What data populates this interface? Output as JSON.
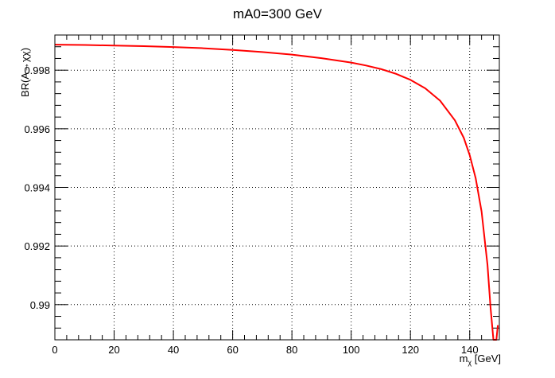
{
  "chart_data": {
    "type": "line",
    "title": "mA0=300 GeV",
    "xlabel_main": "m",
    "xlabel_sub": "χ",
    "xlabel_unit": " [GeV]",
    "ylabel": "BR(A→χχ)",
    "xlim": [
      0,
      150
    ],
    "ylim": [
      0.9888,
      0.9992
    ],
    "grid": true,
    "x_ticks": [
      0,
      20,
      40,
      60,
      80,
      100,
      120,
      140
    ],
    "y_ticks": [
      0.99,
      0.992,
      0.994,
      0.996,
      0.998
    ],
    "y_tick_labels": [
      "0.99",
      "0.992",
      "0.994",
      "0.996",
      "0.998"
    ],
    "series": [
      {
        "color": "#ff0000",
        "x": [
          0,
          10,
          20,
          30,
          40,
          50,
          60,
          70,
          80,
          90,
          100,
          105,
          110,
          115,
          120,
          125,
          130,
          135,
          138,
          140,
          142,
          144,
          146,
          147,
          148,
          149,
          149.5
        ],
        "y": [
          0.99887,
          0.99886,
          0.99884,
          0.99882,
          0.99879,
          0.99875,
          0.99869,
          0.99862,
          0.99853,
          0.99841,
          0.99826,
          0.99816,
          0.99804,
          0.99788,
          0.99767,
          0.99738,
          0.99696,
          0.99629,
          0.99569,
          0.9951,
          0.99432,
          0.99318,
          0.99136,
          0.98994,
          0.98794,
          0.98437,
          0.9893
        ]
      }
    ]
  }
}
